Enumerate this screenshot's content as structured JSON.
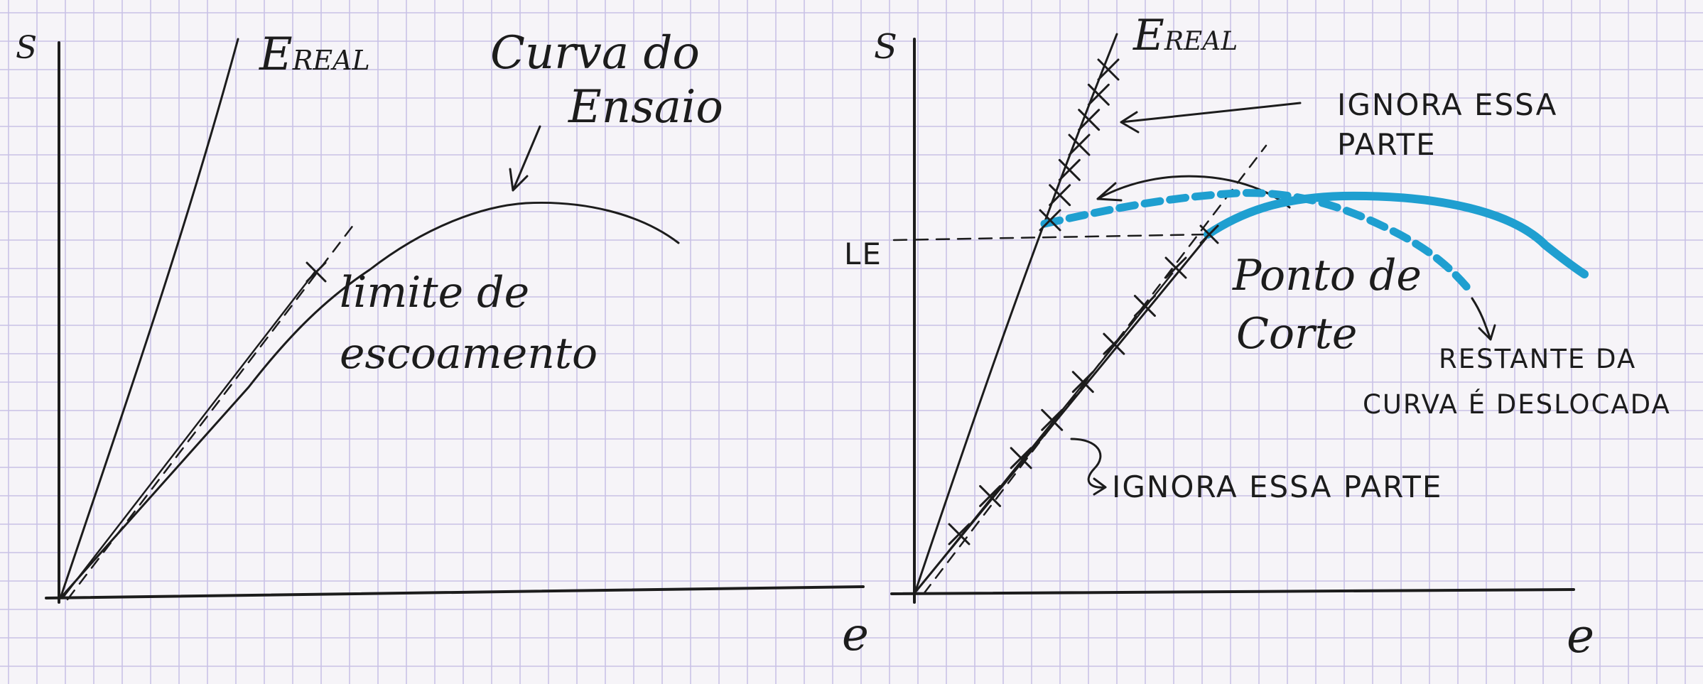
{
  "left_diagram": {
    "y_axis_label": "S",
    "x_axis_label": "e",
    "real_line_label_main": "E",
    "real_line_label_sub": "REAL",
    "curve_label_line1": "Curva do",
    "curve_label_line2": "Ensaio",
    "yield_label_line1": "limite de",
    "yield_label_line2": "escoamento"
  },
  "right_diagram": {
    "y_axis_label": "S",
    "x_axis_label": "e",
    "real_line_label_main": "E",
    "real_line_label_sub": "REAL",
    "le_label": "LE",
    "ignore_top_line1": "IGNORA ESSA",
    "ignore_top_line2": "PARTE",
    "cut_point_line1": "Ponto de",
    "cut_point_line2": "Corte",
    "shifted_line1": "RESTANTE DA",
    "shifted_line2": "CURVA É DESLOCADA",
    "ignore_bottom": "IGNORA ESSA PARTE"
  },
  "colors": {
    "ink": "#1c1c1c",
    "highlight": "#1f9fd0",
    "grid": "#c9c2e6",
    "paper": "#f6f4f8"
  }
}
